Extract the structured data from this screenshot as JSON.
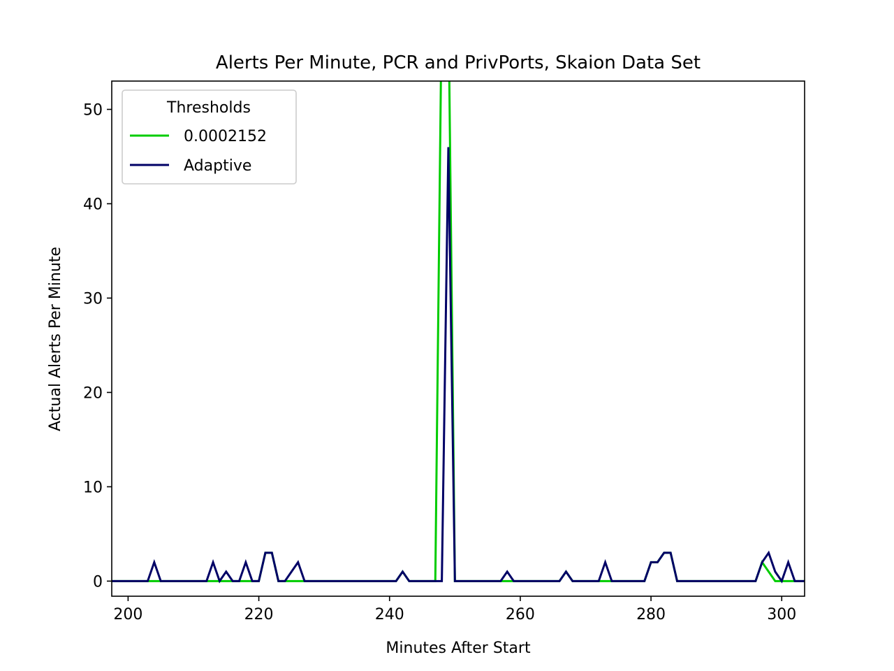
{
  "chart_data": {
    "type": "line",
    "title": "Alerts Per Minute, PCR and PrivPorts, Skaion Data Set",
    "xlabel": "Minutes After Start",
    "ylabel": "Actual Alerts Per Minute",
    "xlim": [
      197.5,
      303.5
    ],
    "ylim": [
      -1.6,
      53
    ],
    "xticks": [
      200,
      220,
      240,
      260,
      280,
      300
    ],
    "yticks": [
      0,
      10,
      20,
      30,
      40,
      50
    ],
    "grid": false,
    "legend": {
      "title": "Thresholds",
      "placement": "upper left"
    },
    "x": [
      197,
      198,
      199,
      200,
      201,
      202,
      203,
      204,
      205,
      206,
      207,
      208,
      209,
      210,
      211,
      212,
      213,
      214,
      215,
      216,
      217,
      218,
      219,
      220,
      221,
      222,
      223,
      224,
      225,
      226,
      227,
      228,
      229,
      230,
      231,
      232,
      233,
      234,
      235,
      236,
      237,
      238,
      239,
      240,
      241,
      242,
      243,
      244,
      245,
      246,
      247,
      248,
      249,
      250,
      251,
      252,
      253,
      254,
      255,
      256,
      257,
      258,
      259,
      260,
      261,
      262,
      263,
      264,
      265,
      266,
      267,
      268,
      269,
      270,
      271,
      272,
      273,
      274,
      275,
      276,
      277,
      278,
      279,
      280,
      281,
      282,
      283,
      284,
      285,
      286,
      287,
      288,
      289,
      290,
      291,
      292,
      293,
      294,
      295,
      296,
      297,
      298,
      299,
      300,
      301,
      302,
      303,
      304
    ],
    "series": [
      {
        "name": "0.0002152",
        "color": "#00cc00",
        "values": [
          0,
          0,
          0,
          0,
          0,
          0,
          0,
          0,
          0,
          0,
          0,
          0,
          0,
          0,
          0,
          0,
          0,
          0,
          0,
          0,
          0,
          0,
          0,
          0,
          3,
          3,
          0,
          0,
          0,
          0,
          0,
          0,
          0,
          0,
          0,
          0,
          0,
          0,
          0,
          0,
          0,
          0,
          0,
          0,
          0,
          1,
          0,
          0,
          0,
          0,
          0,
          62,
          62,
          0,
          0,
          0,
          0,
          0,
          0,
          0,
          0,
          0,
          0,
          0,
          0,
          0,
          0,
          0,
          0,
          0,
          1,
          0,
          0,
          0,
          0,
          0,
          0,
          0,
          0,
          0,
          0,
          0,
          0,
          2,
          2,
          3,
          3,
          0,
          0,
          0,
          0,
          0,
          0,
          0,
          0,
          0,
          0,
          0,
          0,
          0,
          2,
          1,
          0,
          0,
          0,
          0,
          0,
          0
        ]
      },
      {
        "name": "Adaptive",
        "color": "#000066",
        "values": [
          0,
          0,
          0,
          0,
          0,
          0,
          0,
          2,
          0,
          0,
          0,
          0,
          0,
          0,
          0,
          0,
          2,
          0,
          1,
          0,
          0,
          2,
          0,
          0,
          3,
          3,
          0,
          0,
          1,
          2,
          0,
          0,
          0,
          0,
          0,
          0,
          0,
          0,
          0,
          0,
          0,
          0,
          0,
          0,
          0,
          1,
          0,
          0,
          0,
          0,
          0,
          0,
          46,
          0,
          0,
          0,
          0,
          0,
          0,
          0,
          0,
          1,
          0,
          0,
          0,
          0,
          0,
          0,
          0,
          0,
          1,
          0,
          0,
          0,
          0,
          0,
          2,
          0,
          0,
          0,
          0,
          0,
          0,
          2,
          2,
          3,
          3,
          0,
          0,
          0,
          0,
          0,
          0,
          0,
          0,
          0,
          0,
          0,
          0,
          0,
          2,
          3,
          1,
          0,
          2,
          0,
          0,
          0
        ]
      }
    ]
  }
}
